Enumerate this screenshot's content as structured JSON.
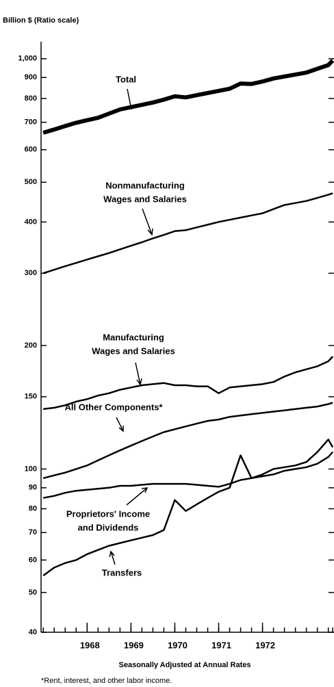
{
  "chart_data": {
    "type": "line",
    "y_axis_label": "Billion $ (Ratio scale)",
    "x_axis_label": "Seasonally Adjusted at Annual Rates",
    "footnote": "*Rent, interest, and other labor income.",
    "log_scale_y": true,
    "xlim": [
      1966.95,
      1973.63
    ],
    "xticks": [
      1968,
      1969,
      1970,
      1971,
      1972
    ],
    "ylim": [
      40,
      1100
    ],
    "yticks": [
      {
        "value": 1000,
        "label": "1,000"
      },
      900,
      800,
      700,
      600,
      500,
      400,
      300,
      200,
      150,
      100,
      90,
      80,
      70,
      60,
      50,
      40
    ],
    "x": [
      1967.0,
      1967.25,
      1967.5,
      1967.75,
      1968.0,
      1968.25,
      1968.5,
      1968.75,
      1969.0,
      1969.25,
      1969.5,
      1969.75,
      1970.0,
      1970.25,
      1970.5,
      1970.75,
      1971.0,
      1971.25,
      1971.5,
      1971.75,
      1972.0,
      1972.25,
      1972.5,
      1972.75,
      1973.0,
      1973.25,
      1973.5,
      1973.6
    ],
    "series": [
      {
        "label": [
          "Total"
        ],
        "color": "#000000",
        "values": [
          660,
          672,
          685,
          698,
          708,
          718,
          735,
          752,
          762,
          772,
          782,
          795,
          810,
          805,
          815,
          825,
          835,
          845,
          870,
          868,
          880,
          895,
          905,
          915,
          925,
          945,
          965,
          990
        ]
      },
      {
        "label": [
          "Nonmanufacturing",
          "Wages and Salaries"
        ],
        "color": "#000000",
        "values": [
          300,
          306,
          312,
          318,
          324,
          330,
          336,
          343,
          350,
          357,
          365,
          372,
          380,
          382,
          388,
          394,
          400,
          405,
          410,
          415,
          420,
          430,
          440,
          445,
          450,
          458,
          466,
          470
        ]
      },
      {
        "label": [
          "Manufacturing",
          "Wages and Salaries"
        ],
        "color": "#000000",
        "values": [
          140,
          141,
          143,
          146,
          148,
          151,
          153,
          156,
          158,
          160,
          161,
          162,
          160,
          160,
          159,
          159,
          153,
          158,
          159,
          160,
          161,
          163,
          168,
          172,
          175,
          178,
          183,
          188
        ]
      },
      {
        "label": [
          "All Other Components*"
        ],
        "color": "#000000",
        "values": [
          95,
          96.5,
          98,
          100,
          102,
          105,
          108,
          111,
          114,
          117,
          120,
          123,
          125,
          127,
          129,
          131,
          132,
          134,
          135,
          136,
          137,
          138,
          139,
          140,
          141,
          142,
          144,
          145
        ]
      },
      {
        "label": [
          "Proprietors' Income",
          "and Dividends"
        ],
        "color": "#000000",
        "values": [
          85,
          86,
          87.5,
          88.5,
          89,
          89.5,
          90,
          91,
          91,
          91.5,
          92,
          92,
          92,
          92,
          91.5,
          91,
          90.5,
          92,
          94,
          95,
          96,
          97,
          99,
          100,
          101,
          103,
          107,
          110
        ]
      },
      {
        "label": [
          "Transfers"
        ],
        "color": "#000000",
        "values": [
          55,
          57.5,
          59,
          60,
          62,
          63.5,
          65,
          66,
          67,
          68,
          69,
          71,
          84,
          79,
          82,
          85,
          88,
          90,
          108,
          95,
          97,
          100,
          101,
          102,
          104,
          110,
          118,
          113
        ]
      }
    ]
  }
}
